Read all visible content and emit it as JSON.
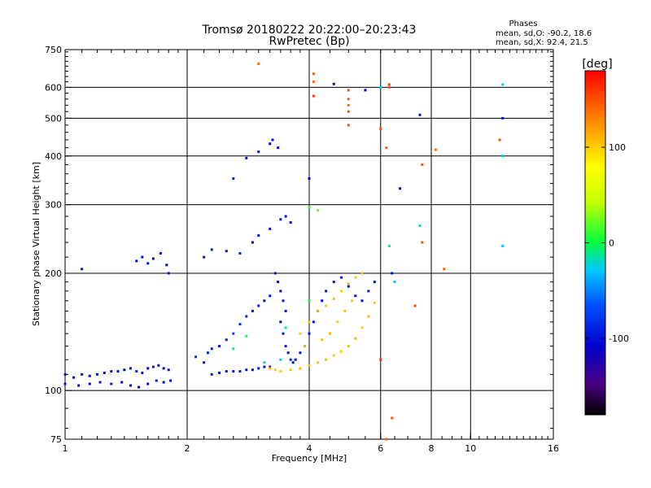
{
  "chart_data": {
    "type": "scatter",
    "title": "Tromsø 20180222 20:22:00–20:23:43",
    "subtitle": "RwPretec (Bp)",
    "xlabel": "Frequency [MHz]",
    "ylabel": "Stationary phase Virtual Height [km]",
    "x_scale": "log",
    "y_scale": "log",
    "xlim": [
      1,
      16
    ],
    "ylim": [
      75,
      750
    ],
    "x_ticks": [
      1,
      2,
      4,
      6,
      8,
      10,
      16
    ],
    "y_ticks": [
      75,
      100,
      200,
      300,
      400,
      500,
      600,
      750
    ],
    "grid": true,
    "stats": {
      "title": "Phases",
      "line_o": "mean, sd,O: -90.2, 18.6",
      "line_x": "mean, sd,X:  92.4, 21.5"
    },
    "colorbar": {
      "label": "[deg]",
      "range": [
        -180,
        180
      ],
      "ticks": [
        100,
        0,
        -100
      ]
    },
    "series": [
      {
        "points": [
          [
            1.0,
            110,
            -95
          ],
          [
            1.05,
            108,
            -110
          ],
          [
            1.1,
            110,
            -100
          ],
          [
            1.15,
            109,
            -105
          ],
          [
            1.2,
            110,
            -98
          ],
          [
            1.25,
            111,
            -110
          ],
          [
            1.3,
            112,
            -100
          ],
          [
            1.35,
            112,
            -95
          ],
          [
            1.4,
            113,
            -105
          ],
          [
            1.45,
            114,
            -100
          ],
          [
            1.5,
            112,
            -90
          ],
          [
            1.55,
            111,
            -100
          ],
          [
            1.6,
            114,
            -110
          ],
          [
            1.65,
            115,
            -95
          ],
          [
            1.7,
            116,
            -100
          ],
          [
            1.75,
            114,
            -105
          ],
          [
            1.8,
            113,
            -100
          ],
          [
            1.0,
            104,
            -95
          ],
          [
            1.08,
            103,
            -100
          ],
          [
            1.15,
            104,
            -110
          ],
          [
            1.22,
            105,
            -100
          ],
          [
            1.3,
            104,
            -95
          ],
          [
            1.38,
            105,
            -105
          ],
          [
            1.45,
            103,
            -100
          ],
          [
            1.52,
            102,
            -110
          ],
          [
            1.6,
            104,
            -100
          ],
          [
            1.68,
            106,
            -95
          ],
          [
            1.75,
            105,
            -100
          ],
          [
            1.82,
            106,
            -105
          ],
          [
            1.1,
            205,
            -100
          ],
          [
            1.5,
            215,
            -105
          ],
          [
            1.55,
            220,
            -100
          ],
          [
            1.6,
            212,
            -95
          ],
          [
            1.65,
            218,
            -110
          ],
          [
            1.72,
            225,
            -100
          ],
          [
            1.78,
            210,
            -100
          ],
          [
            1.8,
            200,
            -95
          ],
          [
            2.1,
            122,
            -80
          ],
          [
            2.2,
            118,
            -100
          ],
          [
            2.25,
            125,
            -90
          ],
          [
            2.3,
            128,
            -95
          ],
          [
            2.4,
            130,
            -100
          ],
          [
            2.5,
            135,
            -90
          ],
          [
            2.6,
            140,
            -70
          ],
          [
            2.7,
            148,
            -80
          ],
          [
            2.8,
            155,
            -90
          ],
          [
            2.9,
            160,
            -100
          ],
          [
            3.0,
            165,
            -95
          ],
          [
            3.1,
            170,
            -100
          ],
          [
            3.2,
            175,
            -90
          ],
          [
            2.3,
            110,
            -95
          ],
          [
            2.4,
            111,
            -100
          ],
          [
            2.5,
            112,
            -95
          ],
          [
            2.6,
            112,
            -100
          ],
          [
            2.7,
            112,
            -95
          ],
          [
            2.8,
            113,
            -100
          ],
          [
            2.9,
            113,
            -100
          ],
          [
            3.0,
            114,
            -90
          ],
          [
            3.1,
            115,
            -100
          ],
          [
            3.2,
            115,
            -95
          ],
          [
            2.2,
            220,
            -100
          ],
          [
            2.3,
            230,
            -95
          ],
          [
            2.5,
            228,
            -100
          ],
          [
            2.7,
            225,
            -90
          ],
          [
            2.9,
            240,
            -110
          ],
          [
            3.0,
            250,
            -100
          ],
          [
            3.2,
            260,
            -100
          ],
          [
            3.4,
            275,
            -95
          ],
          [
            3.5,
            280,
            -100
          ],
          [
            3.6,
            270,
            -105
          ],
          [
            3.3,
            200,
            -100
          ],
          [
            3.35,
            190,
            -110
          ],
          [
            3.4,
            180,
            -100
          ],
          [
            3.45,
            170,
            -95
          ],
          [
            3.5,
            160,
            -100
          ],
          [
            3.4,
            150,
            -105
          ],
          [
            3.45,
            140,
            -100
          ],
          [
            3.5,
            130,
            -95
          ],
          [
            3.55,
            125,
            -100
          ],
          [
            3.6,
            120,
            -90
          ],
          [
            3.65,
            118,
            -100
          ],
          [
            3.7,
            120,
            -95
          ],
          [
            3.8,
            125,
            -100
          ],
          [
            3.9,
            130,
            -90
          ],
          [
            4.0,
            140,
            -95
          ],
          [
            4.1,
            150,
            -100
          ],
          [
            4.2,
            160,
            -90
          ],
          [
            4.3,
            170,
            -100
          ],
          [
            4.4,
            180,
            -95
          ],
          [
            4.6,
            190,
            -100
          ],
          [
            4.8,
            195,
            -90
          ],
          [
            5.0,
            185,
            -100
          ],
          [
            5.2,
            175,
            -95
          ],
          [
            5.4,
            170,
            -100
          ],
          [
            5.6,
            180,
            -90
          ],
          [
            5.8,
            190,
            -100
          ],
          [
            3.2,
            430,
            -110
          ],
          [
            3.25,
            440,
            -100
          ],
          [
            3.35,
            420,
            -95
          ],
          [
            3.0,
            410,
            -100
          ],
          [
            2.8,
            395,
            -100
          ],
          [
            2.6,
            350,
            -90
          ],
          [
            4.0,
            350,
            -110
          ],
          [
            4.6,
            612,
            -100
          ],
          [
            5.5,
            590,
            -110
          ],
          [
            7.5,
            510,
            -100
          ],
          [
            6.7,
            330,
            -110
          ],
          [
            6.4,
            200,
            -95
          ],
          [
            12.0,
            500,
            -105
          ]
        ]
      },
      {
        "points": [
          [
            2.6,
            128,
            -10
          ],
          [
            2.8,
            138,
            0
          ],
          [
            3.4,
            120,
            -20
          ],
          [
            3.5,
            145,
            -10
          ],
          [
            4.0,
            170,
            0
          ],
          [
            4.2,
            290,
            20
          ],
          [
            4.0,
            295,
            10
          ],
          [
            3.1,
            118,
            -20
          ],
          [
            6.0,
            600,
            -30
          ],
          [
            12.0,
            610,
            -20
          ],
          [
            12.0,
            235,
            -30
          ],
          [
            12.0,
            400,
            -25
          ],
          [
            7.5,
            265,
            -20
          ],
          [
            6.3,
            235,
            -10
          ],
          [
            6.5,
            190,
            -30
          ]
        ]
      },
      {
        "points": [
          [
            3.2,
            114,
            110
          ],
          [
            3.3,
            113,
            100
          ],
          [
            3.4,
            112,
            100
          ],
          [
            3.6,
            113,
            105
          ],
          [
            3.8,
            114,
            110
          ],
          [
            4.0,
            116,
            100
          ],
          [
            4.2,
            118,
            105
          ],
          [
            4.4,
            120,
            110
          ],
          [
            4.6,
            123,
            100
          ],
          [
            4.8,
            126,
            100
          ],
          [
            5.0,
            130,
            105
          ],
          [
            5.2,
            136,
            110
          ],
          [
            5.4,
            145,
            100
          ],
          [
            5.6,
            155,
            105
          ],
          [
            5.8,
            168,
            100
          ],
          [
            3.8,
            140,
            100
          ],
          [
            4.0,
            150,
            105
          ],
          [
            4.2,
            160,
            110
          ],
          [
            4.4,
            165,
            100
          ],
          [
            4.6,
            172,
            105
          ],
          [
            4.8,
            180,
            100
          ],
          [
            5.0,
            188,
            110
          ],
          [
            5.2,
            195,
            100
          ],
          [
            5.4,
            200,
            105
          ],
          [
            4.5,
            140,
            110
          ],
          [
            4.7,
            150,
            100
          ],
          [
            4.9,
            160,
            105
          ],
          [
            5.1,
            170,
            100
          ],
          [
            3.9,
            130,
            110
          ],
          [
            4.3,
            135,
            105
          ]
        ]
      },
      {
        "points": [
          [
            3.0,
            690,
            140
          ],
          [
            4.1,
            650,
            150
          ],
          [
            4.1,
            620,
            140
          ],
          [
            4.1,
            570,
            160
          ],
          [
            5.0,
            590,
            150
          ],
          [
            5.0,
            560,
            145
          ],
          [
            5.0,
            540,
            140
          ],
          [
            5.0,
            520,
            150
          ],
          [
            5.0,
            480,
            155
          ],
          [
            6.0,
            470,
            150
          ],
          [
            6.2,
            420,
            145
          ],
          [
            6.3,
            610,
            160
          ],
          [
            7.6,
            380,
            150
          ],
          [
            8.2,
            415,
            140
          ],
          [
            11.8,
            440,
            150
          ],
          [
            7.6,
            240,
            150
          ],
          [
            8.6,
            205,
            140
          ],
          [
            6.4,
            85,
            150
          ],
          [
            6.0,
            120,
            160
          ],
          [
            7.3,
            165,
            150
          ],
          [
            6.2,
            75,
            145
          ],
          [
            6.3,
            600,
            150
          ]
        ]
      }
    ]
  }
}
